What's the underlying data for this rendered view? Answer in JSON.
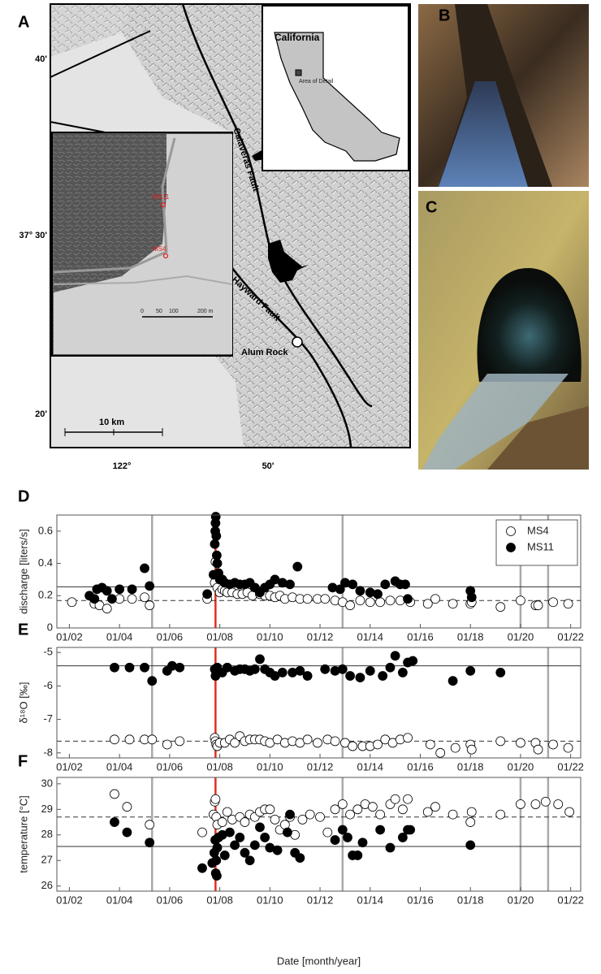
{
  "panel_labels": {
    "a": "A",
    "b": "B",
    "c": "C",
    "d": "D",
    "e": "E",
    "f": "F"
  },
  "map": {
    "lat_labels": [
      "40'",
      "37° 30'",
      "20'"
    ],
    "lon_labels": [
      "122°",
      "50'"
    ],
    "inset_title": "California",
    "area_label": "Area of Detail",
    "faults": [
      "Calaveras Fault",
      "Hayward Fault"
    ],
    "site": "Alum Rock",
    "scale": "10 km",
    "wells": [
      "MS11",
      "MS4"
    ],
    "detail_scale": [
      "0",
      "50",
      "100",
      "200 m"
    ]
  },
  "chart_data": [
    {
      "type": "scatter",
      "ylabel": "discharge [liters/s]",
      "legend": "upper right",
      "xlim": [
        2001.5,
        2022.4
      ],
      "ylim": [
        0,
        0.7
      ],
      "xticks": [
        {
          "value": 2002,
          "label": "01/02"
        },
        {
          "value": 2004,
          "label": "01/04"
        },
        {
          "value": 2006,
          "label": "01/06"
        },
        {
          "value": 2008,
          "label": "01/08"
        },
        {
          "value": 2010,
          "label": "01/10"
        },
        {
          "value": 2012,
          "label": "01/12"
        },
        {
          "value": 2014,
          "label": "01/14"
        },
        {
          "value": 2016,
          "label": "01/16"
        },
        {
          "value": 2018,
          "label": "01/18"
        },
        {
          "value": 2020,
          "label": "01/20"
        },
        {
          "value": 2022,
          "label": "01/22"
        }
      ],
      "yticks": [
        0,
        0.2,
        0.4,
        0.6
      ],
      "vlines": [
        {
          "x": 2005.3,
          "color": "#aaaaaa"
        },
        {
          "x": 2012.9,
          "color": "#aaaaaa"
        },
        {
          "x": 2020.0,
          "color": "#aaaaaa"
        },
        {
          "x": 2021.1,
          "color": "#aaaaaa"
        },
        {
          "x": 2007.83,
          "color": "#e0301e"
        }
      ],
      "hlines": [
        {
          "y": 0.255,
          "style": "solid"
        },
        {
          "y": 0.17,
          "style": "dashed"
        }
      ],
      "series": [
        {
          "name": "MS4",
          "marker": "open",
          "color": "#000000",
          "x": [
            2002.1,
            2003.0,
            2003.2,
            2003.5,
            2004.0,
            2004.5,
            2005.0,
            2005.2,
            2007.5,
            2007.8,
            2007.83,
            2007.85,
            2007.9,
            2008.0,
            2008.1,
            2008.2,
            2008.3,
            2008.5,
            2008.7,
            2008.9,
            2009.1,
            2009.3,
            2009.6,
            2009.8,
            2010.0,
            2010.2,
            2010.4,
            2010.6,
            2010.9,
            2011.2,
            2011.5,
            2011.9,
            2012.2,
            2012.6,
            2012.9,
            2013.2,
            2013.6,
            2014.0,
            2014.4,
            2014.8,
            2015.2,
            2015.6,
            2016.3,
            2016.6,
            2017.3,
            2018.0,
            2018.05,
            2019.2,
            2020.0,
            2020.6,
            2020.7,
            2021.3,
            2021.9
          ],
          "values": [
            0.16,
            0.15,
            0.14,
            0.12,
            0.18,
            0.18,
            0.19,
            0.14,
            0.18,
            0.28,
            0.41,
            0.33,
            0.25,
            0.22,
            0.24,
            0.23,
            0.22,
            0.22,
            0.21,
            0.21,
            0.22,
            0.2,
            0.21,
            0.2,
            0.2,
            0.19,
            0.2,
            0.18,
            0.19,
            0.18,
            0.18,
            0.18,
            0.18,
            0.17,
            0.16,
            0.14,
            0.17,
            0.16,
            0.16,
            0.17,
            0.17,
            0.16,
            0.15,
            0.18,
            0.15,
            0.15,
            0.16,
            0.13,
            0.17,
            0.14,
            0.14,
            0.16,
            0.15
          ]
        },
        {
          "name": "MS11",
          "marker": "filled",
          "color": "#000000",
          "x": [
            2002.8,
            2003.0,
            2003.1,
            2003.3,
            2003.5,
            2003.7,
            2004.0,
            2004.5,
            2005.0,
            2005.2,
            2007.5,
            2007.75,
            2007.8,
            2007.82,
            2007.83,
            2007.84,
            2007.86,
            2007.88,
            2007.9,
            2007.95,
            2008.0,
            2008.1,
            2008.2,
            2008.4,
            2008.6,
            2008.8,
            2009.0,
            2009.2,
            2009.4,
            2009.6,
            2009.8,
            2010.0,
            2010.2,
            2010.5,
            2010.8,
            2011.1,
            2012.5,
            2012.8,
            2013.0,
            2013.3,
            2013.6,
            2014.0,
            2014.3,
            2014.6,
            2015.0,
            2015.2,
            2015.4,
            2015.5,
            2018.0,
            2018.05
          ],
          "values": [
            0.2,
            0.18,
            0.24,
            0.25,
            0.23,
            0.18,
            0.24,
            0.24,
            0.37,
            0.26,
            0.21,
            0.33,
            0.52,
            0.6,
            0.65,
            0.69,
            0.57,
            0.45,
            0.4,
            0.34,
            0.3,
            0.3,
            0.28,
            0.27,
            0.28,
            0.27,
            0.27,
            0.28,
            0.25,
            0.22,
            0.25,
            0.27,
            0.3,
            0.28,
            0.27,
            0.38,
            0.25,
            0.24,
            0.28,
            0.27,
            0.23,
            0.22,
            0.21,
            0.27,
            0.29,
            0.27,
            0.27,
            0.18,
            0.23,
            0.19
          ]
        }
      ]
    },
    {
      "type": "scatter",
      "ylabel": "δ¹⁸O [‰]",
      "xlim": [
        2001.5,
        2022.4
      ],
      "ylim": [
        -8.15,
        -4.85
      ],
      "xticks": [
        {
          "value": 2002,
          "label": "01/02"
        },
        {
          "value": 2004,
          "label": "01/04"
        },
        {
          "value": 2006,
          "label": "01/06"
        },
        {
          "value": 2008,
          "label": "01/08"
        },
        {
          "value": 2010,
          "label": "01/10"
        },
        {
          "value": 2012,
          "label": "01/12"
        },
        {
          "value": 2014,
          "label": "01/14"
        },
        {
          "value": 2016,
          "label": "01/16"
        },
        {
          "value": 2018,
          "label": "01/18"
        },
        {
          "value": 2020,
          "label": "01/20"
        },
        {
          "value": 2022,
          "label": "01/22"
        }
      ],
      "yticks": [
        -5,
        -6,
        -7,
        -8
      ],
      "vlines": [
        {
          "x": 2005.3,
          "color": "#aaaaaa"
        },
        {
          "x": 2012.9,
          "color": "#aaaaaa"
        },
        {
          "x": 2021.1,
          "color": "#aaaaaa"
        },
        {
          "x": 2007.83,
          "color": "#e0301e"
        }
      ],
      "hlines": [
        {
          "y": -5.4,
          "style": "solid"
        },
        {
          "y": -7.65,
          "style": "dashed"
        }
      ],
      "series": [
        {
          "marker": "open",
          "color": "#000000",
          "x": [
            2003.8,
            2004.4,
            2005.0,
            2005.3,
            2005.9,
            2006.4,
            2007.8,
            2007.83,
            2007.86,
            2007.9,
            2008.0,
            2008.2,
            2008.4,
            2008.6,
            2008.8,
            2009.0,
            2009.2,
            2009.4,
            2009.6,
            2009.8,
            2010.0,
            2010.3,
            2010.6,
            2010.9,
            2011.2,
            2011.5,
            2011.9,
            2012.3,
            2012.6,
            2013.0,
            2013.3,
            2013.7,
            2014.0,
            2014.3,
            2014.6,
            2014.9,
            2015.2,
            2015.5,
            2016.4,
            2016.8,
            2017.4,
            2018.0,
            2018.05,
            2019.2,
            2020.0,
            2020.6,
            2020.7,
            2021.3,
            2021.9
          ],
          "values": [
            -7.6,
            -7.6,
            -7.6,
            -7.6,
            -7.75,
            -7.65,
            -7.55,
            -7.65,
            -7.75,
            -7.8,
            -7.7,
            -7.7,
            -7.6,
            -7.7,
            -7.5,
            -7.65,
            -7.6,
            -7.6,
            -7.6,
            -7.65,
            -7.7,
            -7.6,
            -7.7,
            -7.65,
            -7.7,
            -7.6,
            -7.7,
            -7.6,
            -7.65,
            -7.7,
            -7.8,
            -7.8,
            -7.8,
            -7.75,
            -7.6,
            -7.7,
            -7.6,
            -7.55,
            -7.75,
            -8.0,
            -7.85,
            -7.75,
            -7.9,
            -7.65,
            -7.7,
            -7.7,
            -7.9,
            -7.75,
            -7.85
          ]
        },
        {
          "marker": "filled",
          "color": "#000000",
          "x": [
            2003.8,
            2004.4,
            2005.0,
            2005.3,
            2005.9,
            2006.1,
            2006.4,
            2007.8,
            2007.83,
            2007.86,
            2007.9,
            2008.1,
            2008.3,
            2008.6,
            2008.8,
            2009.0,
            2009.2,
            2009.4,
            2009.6,
            2009.8,
            2010.0,
            2010.2,
            2010.5,
            2010.9,
            2011.2,
            2011.5,
            2012.2,
            2012.6,
            2012.9,
            2013.2,
            2013.6,
            2014.0,
            2014.5,
            2014.8,
            2015.0,
            2015.3,
            2015.5,
            2015.7,
            2017.3,
            2018.0,
            2019.2
          ],
          "values": [
            -5.45,
            -5.45,
            -5.45,
            -5.85,
            -5.55,
            -5.4,
            -5.45,
            -5.5,
            -5.7,
            -5.6,
            -5.45,
            -5.6,
            -5.45,
            -5.55,
            -5.5,
            -5.5,
            -5.55,
            -5.5,
            -5.2,
            -5.5,
            -5.6,
            -5.7,
            -5.6,
            -5.6,
            -5.55,
            -5.7,
            -5.5,
            -5.55,
            -5.5,
            -5.7,
            -5.75,
            -5.55,
            -5.7,
            -5.45,
            -5.1,
            -5.6,
            -5.3,
            -5.25,
            -5.85,
            -5.55,
            -5.6
          ]
        }
      ]
    },
    {
      "type": "scatter",
      "ylabel": "temperature [°C]",
      "xlabel": "Date [month/year]",
      "xlim": [
        2001.5,
        2022.4
      ],
      "ylim": [
        25.8,
        30.25
      ],
      "xticks": [
        {
          "value": 2002,
          "label": "01/02"
        },
        {
          "value": 2004,
          "label": "01/04"
        },
        {
          "value": 2006,
          "label": "01/06"
        },
        {
          "value": 2008,
          "label": "01/08"
        },
        {
          "value": 2010,
          "label": "01/10"
        },
        {
          "value": 2012,
          "label": "01/12"
        },
        {
          "value": 2014,
          "label": "01/14"
        },
        {
          "value": 2016,
          "label": "01/16"
        },
        {
          "value": 2018,
          "label": "01/18"
        },
        {
          "value": 2020,
          "label": "01/20"
        },
        {
          "value": 2022,
          "label": "01/22"
        }
      ],
      "yticks": [
        26,
        27,
        28,
        29,
        30
      ],
      "vlines": [
        {
          "x": 2005.3,
          "color": "#aaaaaa"
        },
        {
          "x": 2012.9,
          "color": "#aaaaaa"
        },
        {
          "x": 2020.0,
          "color": "#aaaaaa"
        },
        {
          "x": 2021.1,
          "color": "#aaaaaa"
        },
        {
          "x": 2007.83,
          "color": "#e0301e"
        }
      ],
      "hlines": [
        {
          "y": 28.7,
          "style": "dashed"
        },
        {
          "y": 27.55,
          "style": "solid"
        }
      ],
      "series": [
        {
          "marker": "open",
          "color": "#000000",
          "x": [
            2003.8,
            2004.3,
            2005.2,
            2007.3,
            2007.75,
            2007.8,
            2007.83,
            2007.86,
            2007.9,
            2008.1,
            2008.3,
            2008.5,
            2008.8,
            2009.0,
            2009.2,
            2009.4,
            2009.6,
            2009.8,
            2010.0,
            2010.2,
            2010.4,
            2010.6,
            2010.8,
            2011.0,
            2011.3,
            2011.6,
            2012.0,
            2012.3,
            2012.6,
            2012.9,
            2013.2,
            2013.5,
            2013.8,
            2014.1,
            2014.4,
            2014.8,
            2015.0,
            2015.3,
            2015.5,
            2016.3,
            2016.6,
            2017.3,
            2018.0,
            2018.05,
            2019.2,
            2020.0,
            2020.6,
            2021.0,
            2021.5,
            2021.95
          ],
          "values": [
            29.6,
            29.1,
            28.4,
            28.1,
            28.8,
            29.3,
            29.4,
            28.7,
            28.4,
            28.5,
            28.9,
            28.6,
            28.7,
            28.5,
            28.8,
            28.7,
            28.9,
            29.0,
            29.0,
            28.6,
            28.2,
            28.4,
            28.7,
            28.0,
            28.6,
            28.8,
            28.7,
            28.1,
            29.0,
            29.2,
            28.8,
            29.0,
            29.2,
            29.1,
            28.8,
            29.2,
            29.4,
            29.0,
            29.4,
            28.9,
            29.1,
            28.8,
            28.5,
            28.9,
            28.8,
            29.2,
            29.2,
            29.3,
            29.2,
            28.9
          ]
        },
        {
          "marker": "filled",
          "color": "#000000",
          "x": [
            2003.8,
            2004.3,
            2005.2,
            2007.3,
            2007.7,
            2007.78,
            2007.82,
            2007.84,
            2007.86,
            2007.88,
            2007.9,
            2007.95,
            2008.1,
            2008.2,
            2008.4,
            2008.6,
            2008.8,
            2009.0,
            2009.2,
            2009.4,
            2009.6,
            2009.8,
            2010.0,
            2010.3,
            2010.7,
            2010.8,
            2011.0,
            2011.2,
            2012.6,
            2012.9,
            2013.1,
            2013.3,
            2013.5,
            2013.7,
            2014.4,
            2014.8,
            2015.3,
            2015.5,
            2015.6,
            2018.0
          ],
          "values": [
            28.5,
            28.1,
            27.7,
            26.7,
            26.9,
            27.3,
            27.8,
            26.5,
            27.0,
            26.4,
            27.5,
            27.9,
            28.0,
            27.2,
            28.1,
            27.6,
            27.9,
            27.3,
            27.0,
            27.6,
            28.3,
            27.9,
            27.5,
            27.4,
            28.1,
            28.8,
            27.3,
            27.1,
            27.8,
            28.2,
            27.9,
            27.2,
            27.2,
            27.7,
            28.2,
            27.5,
            27.9,
            28.2,
            28.2,
            27.6
          ]
        }
      ]
    }
  ]
}
